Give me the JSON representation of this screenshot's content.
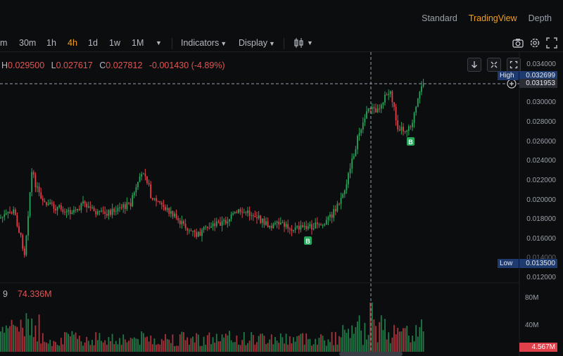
{
  "view_tabs": [
    "Standard",
    "TradingView",
    "Depth"
  ],
  "active_view": "TradingView",
  "toolbar": {
    "intervals": [
      "m",
      "30m",
      "1h",
      "4h",
      "1d",
      "1w",
      "1M"
    ],
    "active_interval": "4h",
    "indicators_label": "Indicators",
    "display_label": "Display"
  },
  "ohlc": {
    "h_label": "H",
    "h": "0.029500",
    "l_label": "L",
    "l": "0.027617",
    "c_label": "C",
    "c": "0.027812",
    "change": "-0.001430 (-4.89%)"
  },
  "price_axis": [
    "0.034000",
    "0.032000",
    "0.030000",
    "0.028000",
    "0.026000",
    "0.024000",
    "0.022000",
    "0.020000",
    "0.018000",
    "0.016000",
    "0.014000",
    "0.012000"
  ],
  "high_tag": {
    "label": "High",
    "value": "0.032699"
  },
  "crosshair_price": "0.031953",
  "low_tag": {
    "label": "Low",
    "value": "0.013500"
  },
  "markers": [
    "B",
    "B"
  ],
  "volume": {
    "label": "9",
    "value": "74.336M",
    "axis": [
      "80M",
      "40M"
    ],
    "last": "4.567M"
  },
  "colors": {
    "up": "#26a65b",
    "down": "#e0404a",
    "accent": "#f0a020",
    "axis_tag": "#1e3a6e"
  }
}
